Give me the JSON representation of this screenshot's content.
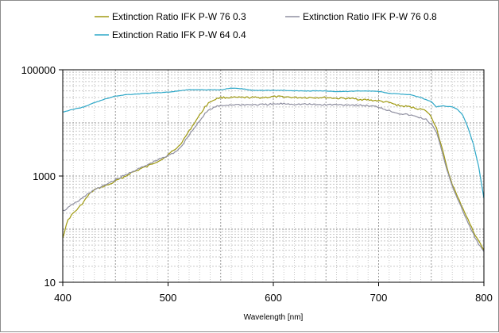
{
  "chart_data": {
    "type": "line",
    "title": "",
    "xlabel": "Wavelength [nm]",
    "ylabel": "",
    "xlim": [
      400,
      800
    ],
    "ylim": [
      10,
      100000
    ],
    "y_scale": "log",
    "x_ticks": [
      400,
      500,
      600,
      700,
      800
    ],
    "x_tick_labels": [
      "400",
      "500",
      "600",
      "700",
      "800"
    ],
    "y_ticks": [
      10,
      1000,
      100000
    ],
    "y_tick_labels": [
      "10",
      "1000",
      "100000"
    ],
    "grid": true,
    "legend_position": "top",
    "series": [
      {
        "name": "Extinction Ratio IFK P-W 76 0.3",
        "color": "#a09a12",
        "x": [
          400,
          405,
          410,
          415,
          420,
          425,
          430,
          435,
          440,
          445,
          450,
          455,
          460,
          465,
          470,
          475,
          480,
          485,
          490,
          495,
          500,
          505,
          510,
          515,
          520,
          525,
          530,
          535,
          540,
          545,
          550,
          560,
          570,
          580,
          590,
          600,
          610,
          620,
          630,
          640,
          650,
          660,
          670,
          680,
          690,
          700,
          710,
          720,
          730,
          740,
          745,
          750,
          755,
          760,
          765,
          770,
          775,
          780,
          785,
          790,
          795,
          800
        ],
        "y": [
          70,
          150,
          200,
          250,
          330,
          450,
          550,
          600,
          650,
          700,
          800,
          900,
          1000,
          1150,
          1250,
          1400,
          1500,
          1700,
          1900,
          2100,
          2500,
          3000,
          3600,
          5000,
          7000,
          10000,
          14000,
          20000,
          25000,
          28000,
          30000,
          30000,
          30000,
          30000,
          30000,
          31000,
          31000,
          30000,
          30000,
          30000,
          30000,
          29000,
          29000,
          28000,
          27000,
          26000,
          24000,
          21000,
          20000,
          18000,
          17000,
          13000,
          8000,
          3500,
          1400,
          700,
          400,
          250,
          150,
          90,
          60,
          40
        ]
      },
      {
        "name": "Extinction Ratio IFK P-W 76 0.8",
        "color": "#8f8fa0",
        "x": [
          400,
          405,
          410,
          415,
          420,
          425,
          430,
          435,
          440,
          445,
          450,
          455,
          460,
          465,
          470,
          475,
          480,
          485,
          490,
          495,
          500,
          505,
          510,
          515,
          520,
          525,
          530,
          535,
          540,
          545,
          550,
          560,
          570,
          580,
          590,
          600,
          610,
          620,
          630,
          640,
          650,
          660,
          670,
          680,
          690,
          700,
          710,
          720,
          730,
          740,
          745,
          750,
          755,
          760,
          765,
          770,
          775,
          780,
          785,
          790,
          795,
          800
        ],
        "y": [
          220,
          250,
          300,
          340,
          400,
          480,
          550,
          600,
          680,
          760,
          850,
          950,
          1050,
          1200,
          1300,
          1450,
          1600,
          1800,
          2000,
          2200,
          2400,
          2700,
          3200,
          4200,
          6000,
          8000,
          11000,
          15000,
          18000,
          20000,
          21000,
          22000,
          22000,
          22000,
          22000,
          22500,
          23000,
          22500,
          22500,
          22000,
          22000,
          22000,
          22000,
          21500,
          21000,
          20000,
          17000,
          15000,
          14000,
          12500,
          11500,
          9500,
          6500,
          3000,
          1300,
          650,
          360,
          220,
          130,
          80,
          52,
          38
        ]
      },
      {
        "name": "Extinction Ratio IFK P-W 64 0.4",
        "color": "#2ea8c8",
        "x": [
          400,
          410,
          420,
          430,
          440,
          450,
          460,
          470,
          480,
          490,
          500,
          510,
          520,
          530,
          540,
          550,
          560,
          570,
          580,
          590,
          600,
          610,
          620,
          630,
          640,
          650,
          660,
          670,
          680,
          690,
          700,
          710,
          720,
          730,
          740,
          750,
          755,
          760,
          770,
          775,
          780,
          785,
          790,
          795,
          800
        ],
        "y": [
          16000,
          18000,
          20000,
          24000,
          28000,
          32000,
          34000,
          35000,
          36000,
          37000,
          38000,
          40000,
          42000,
          42000,
          42000,
          42000,
          45000,
          44000,
          41000,
          41000,
          41000,
          41000,
          40000,
          40000,
          40000,
          40000,
          39000,
          39000,
          40000,
          40000,
          39000,
          36000,
          35000,
          34000,
          30000,
          25000,
          20000,
          21000,
          20000,
          18000,
          14000,
          8000,
          4000,
          1500,
          380
        ]
      }
    ]
  }
}
